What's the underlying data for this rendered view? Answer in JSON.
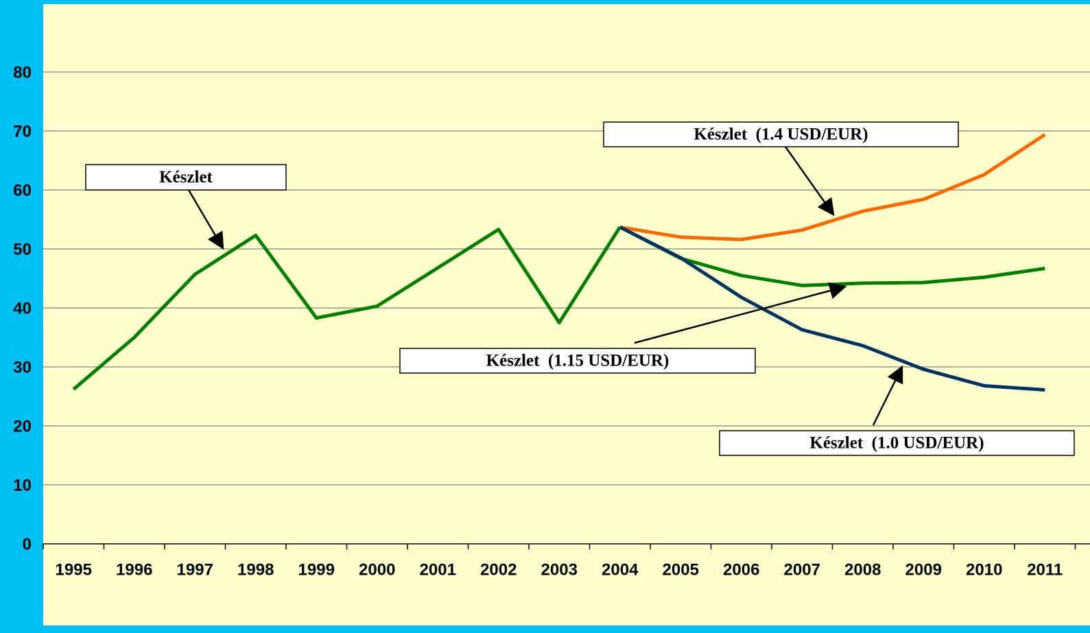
{
  "chart_data": {
    "type": "line",
    "categories": [
      "1995",
      "1996",
      "1997",
      "1998",
      "1999",
      "2000",
      "2001",
      "2002",
      "2003",
      "2004",
      "2005",
      "2006",
      "2007",
      "2008",
      "2009",
      "2010",
      "2011"
    ],
    "series": [
      {
        "name": "Készlet",
        "color": "#008000",
        "values": [
          26.2,
          35,
          45.7,
          52.3,
          38.3,
          40.3,
          46.8,
          53.3,
          37.5,
          53.7,
          null,
          null,
          null,
          null,
          null,
          null,
          null
        ]
      },
      {
        "name": "Készlet  (1.4 USD/EUR)",
        "color": "#ff6600",
        "values": [
          null,
          null,
          null,
          null,
          null,
          null,
          null,
          null,
          null,
          53.7,
          52,
          51.6,
          53.2,
          56.4,
          58.4,
          62.6,
          69.4
        ]
      },
      {
        "name": "Készlet  (1.15 USD/EUR)",
        "color": "#008000",
        "values": [
          null,
          null,
          null,
          null,
          null,
          null,
          null,
          null,
          null,
          53.7,
          48.4,
          45.5,
          43.8,
          44.2,
          44.3,
          45.2,
          46.7
        ]
      },
      {
        "name": "Készlet  (1.0 USD/EUR)",
        "color": "#003366",
        "values": [
          null,
          null,
          null,
          null,
          null,
          null,
          null,
          null,
          null,
          53.7,
          48.5,
          41.8,
          36.3,
          33.6,
          29.6,
          26.8,
          26.1
        ]
      }
    ],
    "ylim": [
      0,
      80
    ],
    "yticks": [
      0,
      10,
      20,
      30,
      40,
      50,
      60,
      70,
      80
    ],
    "grid": true
  }
}
